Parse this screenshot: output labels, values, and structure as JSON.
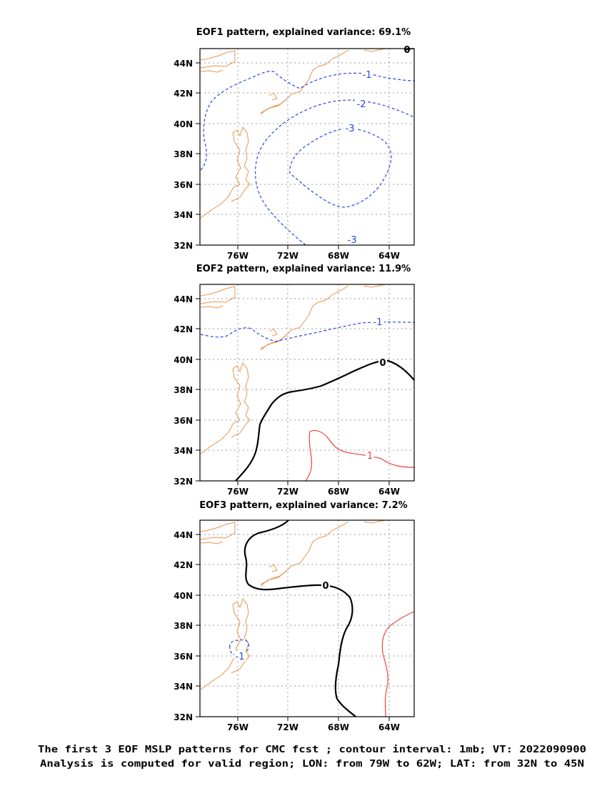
{
  "chart_data": [
    {
      "type": "contour-map",
      "title": "EOF1 pattern, explained variance: 69.1%",
      "x_ticks": [
        "76W",
        "72W",
        "68W",
        "64W"
      ],
      "y_ticks": [
        "44N",
        "42N",
        "40N",
        "38N",
        "36N",
        "34N",
        "32N"
      ],
      "contour_labels": [
        {
          "text": "-1",
          "value": -1,
          "lon": -66.9,
          "lat": 42.7
        },
        {
          "text": "-2",
          "value": -2,
          "lon": -68.3,
          "lat": 41.4
        },
        {
          "text": "-3",
          "value": -3,
          "lon": -69.1,
          "lat": 38.5
        },
        {
          "text": "-3",
          "value": -3,
          "lon": -68.8,
          "lat": 32.4
        },
        {
          "text": "0",
          "value": 0,
          "lon": -62.2,
          "lat": 44.8
        }
      ]
    },
    {
      "type": "contour-map",
      "title": "EOF2 pattern, explained variance: 11.9%",
      "x_ticks": [
        "76W",
        "72W",
        "68W",
        "64W"
      ],
      "y_ticks": [
        "44N",
        "42N",
        "40N",
        "38N",
        "36N",
        "34N",
        "32N"
      ],
      "contour_labels": [
        {
          "text": "-1",
          "value": -1,
          "lon": -65.1,
          "lat": 42.5
        },
        {
          "text": "0",
          "value": 0,
          "lon": -64.3,
          "lat": 39.9
        },
        {
          "text": "1",
          "value": 1,
          "lon": -66.3,
          "lat": 33.6
        }
      ]
    },
    {
      "type": "contour-map",
      "title": "EOF3 pattern, explained variance: 7.2%",
      "x_ticks": [
        "76W",
        "72W",
        "68W",
        "64W"
      ],
      "y_ticks": [
        "44N",
        "42N",
        "40N",
        "38N",
        "36N",
        "34N",
        "32N"
      ],
      "contour_labels": [
        {
          "text": "0",
          "value": 0,
          "lon": -69.0,
          "lat": 40.6
        },
        {
          "text": "-1",
          "value": -1,
          "lon": -75.7,
          "lat": 35.9
        }
      ]
    }
  ],
  "caption": {
    "line1": "The first 3 EOF MSLP patterns for CMC fcst ; contour interval: 1mb; VT: 2022090900",
    "line2": "Analysis is computed for valid region; LON: from 79W to 62W; LAT: from 32N to 45N"
  },
  "colors": {
    "coastline": "#e8954d",
    "negative_contour": "#2646e6",
    "zero_contour": "#000000",
    "positive_contour": "#e84343",
    "grid": "#9a9a9a",
    "frame": "#000000"
  }
}
